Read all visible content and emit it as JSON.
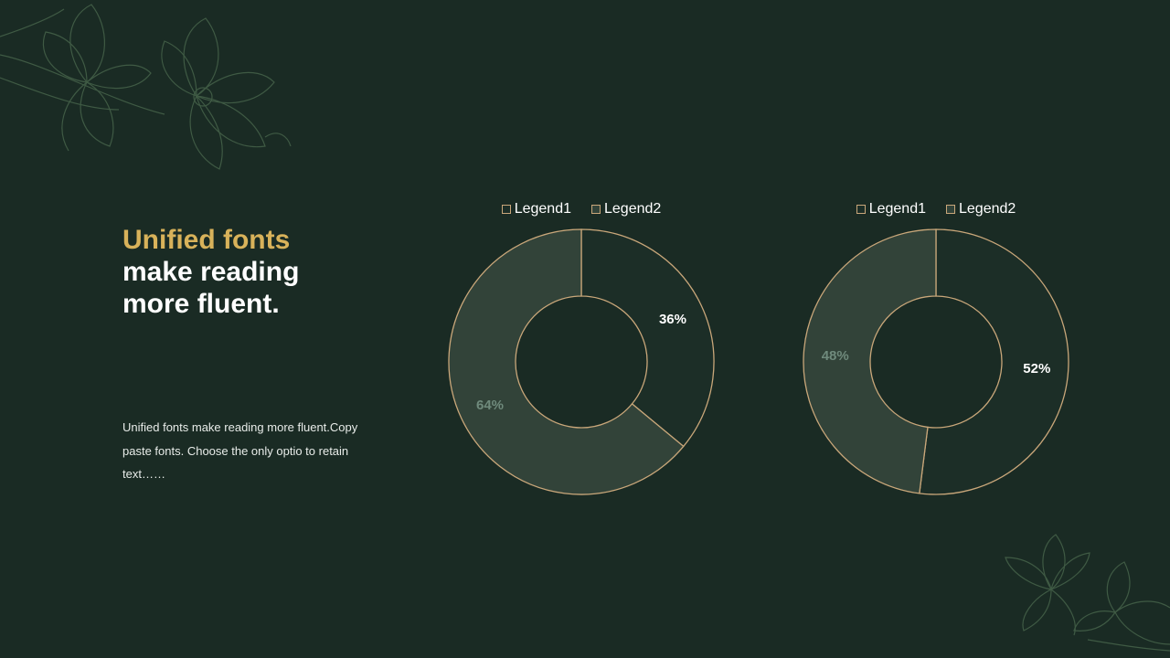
{
  "headline": {
    "accent": "Unified fonts",
    "line2": "make reading",
    "line3": "more fluent."
  },
  "body_text": "Unified fonts make reading more fluent.Copy paste fonts. Choose the only optio to retain text……",
  "colors": {
    "background": "#1a2b24",
    "accent": "#d8b25a",
    "slice_legend1": "#1c2e27",
    "slice_legend2": "#324339",
    "outline": "#c9a77a"
  },
  "chart_data": [
    {
      "type": "pie",
      "donut": true,
      "legend_position": "top",
      "categories": [
        "Legend1",
        "Legend2"
      ],
      "values": [
        36,
        64
      ],
      "labels": [
        "36%",
        "64%"
      ]
    },
    {
      "type": "pie",
      "donut": true,
      "legend_position": "top",
      "categories": [
        "Legend1",
        "Legend2"
      ],
      "values": [
        52,
        48
      ],
      "labels": [
        "52%",
        "48%"
      ]
    }
  ]
}
